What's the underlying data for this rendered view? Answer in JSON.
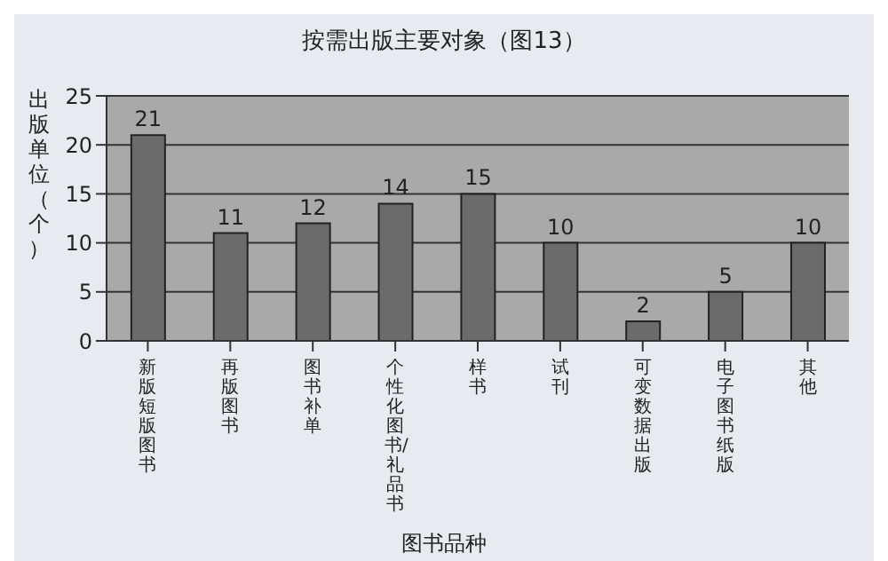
{
  "chart_data": {
    "type": "bar",
    "title": "按需出版主要对象（图13）",
    "xlabel": "图书品种",
    "ylabel": "出版单位（个）",
    "categories": [
      "新版短版图书",
      "再版图书",
      "图书补单",
      "个性化图书/礼品书",
      "样书",
      "试刊",
      "可变数据出版",
      "电子图书纸版",
      "其他"
    ],
    "values": [
      21,
      11,
      12,
      14,
      15,
      10,
      2,
      5,
      10
    ],
    "color": "#6b6b6b",
    "ylim": [
      0,
      25
    ],
    "yticks": [
      0,
      5,
      10,
      15,
      20,
      25
    ],
    "grid": "y",
    "data_labels": true
  }
}
